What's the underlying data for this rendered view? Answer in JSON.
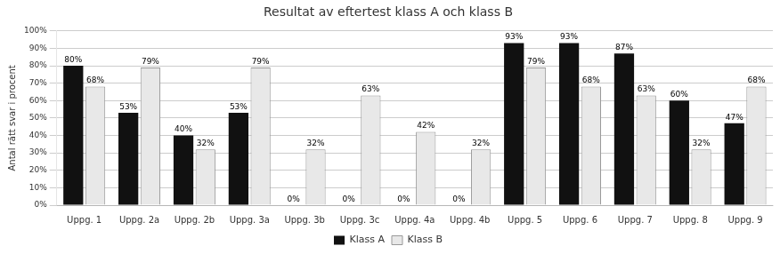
{
  "chart_data": {
    "type": "bar",
    "title": "Resultat av eftertest klass A och klass B",
    "ylabel": "Antal rätt svar i procent",
    "categories": [
      "Uppg. 1",
      "Uppg. 2a",
      "Uppg. 2b",
      "Uppg. 3a",
      "Uppg. 3b",
      "Uppg. 3c",
      "Uppg. 4a",
      "Uppg. 4b",
      "Uppg. 5",
      "Uppg. 6",
      "Uppg. 7",
      "Uppg. 8",
      "Uppg. 9"
    ],
    "series": [
      {
        "name": "Klass A",
        "color": "#111111",
        "values": [
          80,
          53,
          40,
          53,
          0,
          0,
          0,
          0,
          93,
          93,
          87,
          60,
          47
        ],
        "value_labels": [
          "80%",
          "53%",
          "40%",
          "53%",
          "0%",
          "0%",
          "0%",
          "0%",
          "93%",
          "93%",
          "87%",
          "60%",
          "47%"
        ]
      },
      {
        "name": "Klass B",
        "color": "#e8e8e8",
        "values": [
          68,
          79,
          32,
          79,
          32,
          63,
          42,
          32,
          79,
          68,
          63,
          32,
          68
        ],
        "value_labels": [
          "68%",
          "79%",
          "32%",
          "79%",
          "32%",
          "63%",
          "42%",
          "32%",
          "79%",
          "68%",
          "63%",
          "32%",
          "68%"
        ]
      }
    ],
    "ylim": [
      0,
      100
    ],
    "yticks": [
      {
        "value": 0,
        "label": "0%"
      },
      {
        "value": 10,
        "label": "10%"
      },
      {
        "value": 20,
        "label": "20%"
      },
      {
        "value": 30,
        "label": "30%"
      },
      {
        "value": 40,
        "label": "40%"
      },
      {
        "value": 50,
        "label": "50%"
      },
      {
        "value": 60,
        "label": "60%"
      },
      {
        "value": 70,
        "label": "70%"
      },
      {
        "value": 80,
        "label": "80%"
      },
      {
        "value": 90,
        "label": "90%"
      },
      {
        "value": 100,
        "label": "100%"
      }
    ],
    "grid": true,
    "legend": "bottom",
    "data_labels": true
  }
}
